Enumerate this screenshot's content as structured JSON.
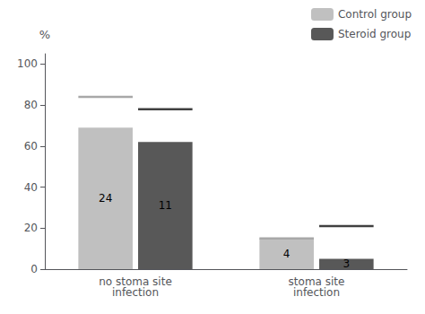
{
  "chart_data": {
    "type": "bar",
    "categories": [
      "no stoma site\ninfection",
      "stoma site\ninfection"
    ],
    "ylabel": "%",
    "series": [
      {
        "name": "Control group",
        "color": "#c0c0c0",
        "values": [
          69,
          15
        ],
        "error_levels": [
          84,
          15
        ],
        "error_color": "#a8a8a8",
        "n_labels": [
          "24",
          "4"
        ]
      },
      {
        "name": "Steroid group",
        "color": "#585858",
        "values": [
          62,
          5
        ],
        "error_levels": [
          78,
          21
        ],
        "error_color": "#404040",
        "n_labels": [
          "11",
          "3"
        ]
      }
    ],
    "ylim": [
      0,
      105
    ],
    "yticks": [
      0,
      20,
      40,
      60,
      80,
      100
    ],
    "grid": false,
    "legend": "upper right"
  }
}
